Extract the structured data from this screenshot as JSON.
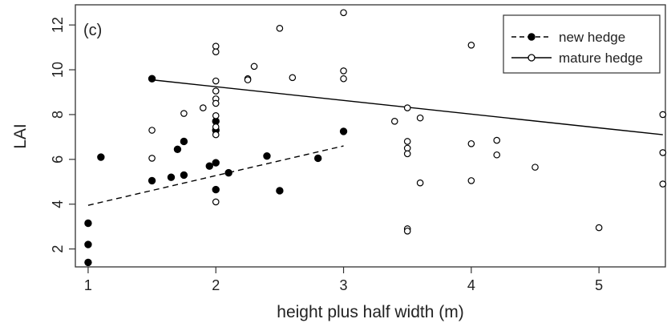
{
  "chart_data": {
    "type": "scatter",
    "panel_label": "(c)",
    "xlabel": "height plus half width (m)",
    "ylabel": "LAI",
    "xlim": [
      0.9,
      5.52
    ],
    "ylim": [
      1.2,
      12.9
    ],
    "x_ticks": [
      1,
      2,
      3,
      4,
      5
    ],
    "y_ticks": [
      2,
      4,
      6,
      8,
      10,
      12
    ],
    "grid": false,
    "legend_position": "top-right",
    "series": [
      {
        "name": "new hedge",
        "marker": "filled-circle",
        "line_style": "dashed",
        "color": "#000000",
        "points": [
          [
            1.0,
            1.4
          ],
          [
            1.0,
            2.2
          ],
          [
            1.0,
            3.15
          ],
          [
            1.1,
            6.1
          ],
          [
            1.5,
            9.6
          ],
          [
            1.5,
            5.05
          ],
          [
            1.65,
            5.2
          ],
          [
            1.7,
            6.45
          ],
          [
            1.75,
            6.8
          ],
          [
            1.75,
            5.3
          ],
          [
            1.95,
            5.7
          ],
          [
            2.0,
            7.7
          ],
          [
            2.0,
            7.3
          ],
          [
            2.0,
            5.85
          ],
          [
            2.0,
            4.65
          ],
          [
            2.1,
            5.4
          ],
          [
            2.4,
            6.15
          ],
          [
            2.5,
            4.6
          ],
          [
            2.8,
            6.05
          ],
          [
            3.0,
            7.25
          ]
        ],
        "fit": [
          [
            1.0,
            3.95
          ],
          [
            3.0,
            6.6
          ]
        ]
      },
      {
        "name": "mature hedge",
        "marker": "open-circle",
        "line_style": "solid",
        "color": "#000000",
        "points": [
          [
            1.5,
            7.3
          ],
          [
            1.5,
            6.05
          ],
          [
            1.75,
            8.05
          ],
          [
            1.9,
            8.3
          ],
          [
            2.0,
            11.05
          ],
          [
            2.0,
            10.8
          ],
          [
            2.0,
            9.5
          ],
          [
            2.0,
            9.05
          ],
          [
            2.0,
            8.7
          ],
          [
            2.0,
            8.5
          ],
          [
            2.0,
            7.95
          ],
          [
            2.0,
            7.45
          ],
          [
            2.0,
            7.1
          ],
          [
            2.0,
            4.1
          ],
          [
            2.25,
            9.6
          ],
          [
            2.25,
            9.55
          ],
          [
            2.3,
            10.15
          ],
          [
            2.5,
            11.85
          ],
          [
            2.6,
            9.65
          ],
          [
            3.0,
            12.55
          ],
          [
            3.0,
            9.95
          ],
          [
            3.0,
            9.6
          ],
          [
            3.4,
            7.7
          ],
          [
            3.5,
            8.3
          ],
          [
            3.5,
            6.8
          ],
          [
            3.5,
            6.5
          ],
          [
            3.5,
            6.25
          ],
          [
            3.5,
            2.9
          ],
          [
            3.5,
            2.8
          ],
          [
            3.6,
            7.85
          ],
          [
            3.6,
            4.95
          ],
          [
            4.0,
            11.1
          ],
          [
            4.0,
            6.7
          ],
          [
            4.0,
            5.05
          ],
          [
            4.2,
            6.85
          ],
          [
            4.2,
            6.2
          ],
          [
            4.5,
            5.65
          ],
          [
            5.0,
            2.95
          ],
          [
            5.5,
            8.0
          ],
          [
            5.5,
            6.3
          ],
          [
            5.5,
            4.9
          ]
        ],
        "fit": [
          [
            1.5,
            9.55
          ],
          [
            5.5,
            7.1
          ]
        ]
      }
    ]
  }
}
